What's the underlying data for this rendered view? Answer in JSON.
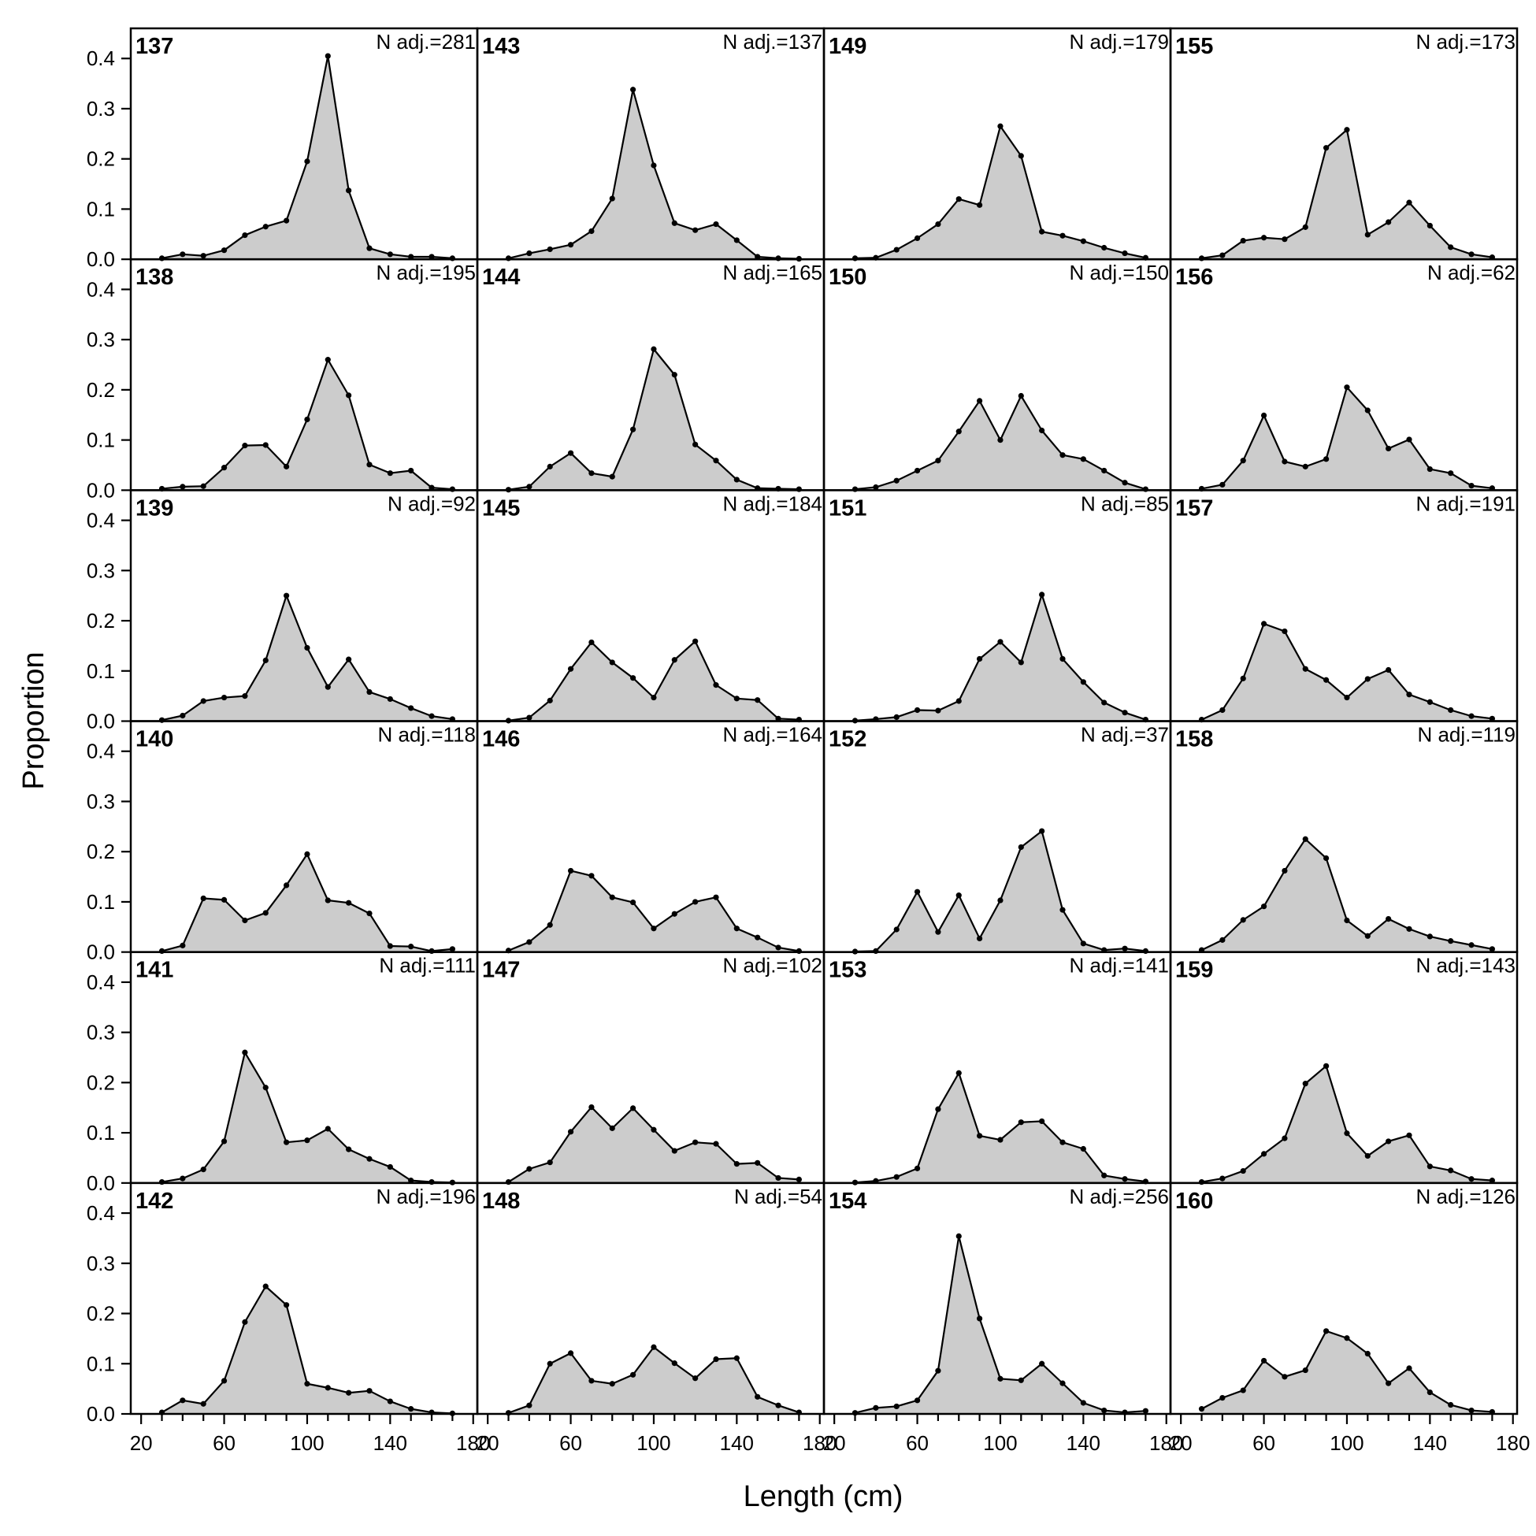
{
  "chart_data": {
    "type": "area",
    "xlabel": "Length (cm)",
    "ylabel": "Proportion",
    "xlim": [
      15,
      182
    ],
    "ylim": [
      0,
      0.46
    ],
    "x_ticks": [
      20,
      60,
      100,
      140,
      180
    ],
    "y_ticks": [
      0.0,
      0.1,
      0.2,
      0.3,
      0.4
    ],
    "y_tick_labels": [
      "0.0",
      "0.1",
      "0.2",
      "0.3",
      "0.4"
    ],
    "x_tick_labels": [
      "20",
      "60",
      "100",
      "140",
      "180"
    ],
    "x": [
      30,
      40,
      50,
      60,
      70,
      80,
      90,
      100,
      110,
      120,
      130,
      140,
      150,
      160,
      170
    ],
    "fill_color": "#cccccc",
    "line_color": "#000000",
    "grid": false,
    "panels": [
      {
        "id": "137",
        "n_adj": "N adj.=281",
        "values": [
          0.002,
          0.01,
          0.007,
          0.018,
          0.048,
          0.065,
          0.077,
          0.195,
          0.405,
          0.137,
          0.022,
          0.01,
          0.005,
          0.005,
          0.002
        ]
      },
      {
        "id": "138",
        "n_adj": "N adj.=195",
        "values": [
          0.003,
          0.007,
          0.008,
          0.045,
          0.089,
          0.09,
          0.047,
          0.141,
          0.26,
          0.189,
          0.051,
          0.034,
          0.039,
          0.005,
          0.002
        ]
      },
      {
        "id": "139",
        "n_adj": "N adj.=92",
        "values": [
          0.002,
          0.011,
          0.04,
          0.047,
          0.05,
          0.121,
          0.25,
          0.146,
          0.068,
          0.123,
          0.058,
          0.044,
          0.026,
          0.01,
          0.004
        ]
      },
      {
        "id": "140",
        "n_adj": "N adj.=118",
        "values": [
          0.002,
          0.013,
          0.107,
          0.104,
          0.063,
          0.078,
          0.133,
          0.195,
          0.103,
          0.098,
          0.077,
          0.012,
          0.011,
          0.002,
          0.006
        ]
      },
      {
        "id": "141",
        "n_adj": "N adj.=111",
        "values": [
          0.002,
          0.009,
          0.027,
          0.083,
          0.26,
          0.19,
          0.081,
          0.085,
          0.108,
          0.067,
          0.048,
          0.032,
          0.005,
          0.002,
          0.001
        ]
      },
      {
        "id": "142",
        "n_adj": "N adj.=196",
        "values": [
          0.003,
          0.027,
          0.02,
          0.066,
          0.183,
          0.254,
          0.217,
          0.06,
          0.052,
          0.042,
          0.046,
          0.025,
          0.01,
          0.003,
          0.001
        ]
      },
      {
        "id": "143",
        "n_adj": "N adj.=137",
        "values": [
          0.002,
          0.012,
          0.02,
          0.029,
          0.056,
          0.121,
          0.338,
          0.187,
          0.072,
          0.058,
          0.07,
          0.038,
          0.005,
          0.002,
          0.001
        ]
      },
      {
        "id": "144",
        "n_adj": "N adj.=165",
        "values": [
          0.001,
          0.007,
          0.047,
          0.074,
          0.034,
          0.027,
          0.121,
          0.281,
          0.23,
          0.091,
          0.059,
          0.021,
          0.004,
          0.003,
          0.002
        ]
      },
      {
        "id": "145",
        "n_adj": "N adj.=184",
        "values": [
          0.001,
          0.007,
          0.041,
          0.104,
          0.157,
          0.117,
          0.086,
          0.047,
          0.122,
          0.159,
          0.072,
          0.045,
          0.042,
          0.005,
          0.003
        ]
      },
      {
        "id": "146",
        "n_adj": "N adj.=164",
        "values": [
          0.003,
          0.02,
          0.054,
          0.162,
          0.152,
          0.109,
          0.099,
          0.047,
          0.076,
          0.1,
          0.109,
          0.047,
          0.029,
          0.009,
          0.002
        ]
      },
      {
        "id": "147",
        "n_adj": "N adj.=102",
        "values": [
          0.002,
          0.028,
          0.041,
          0.102,
          0.151,
          0.109,
          0.149,
          0.106,
          0.064,
          0.081,
          0.078,
          0.038,
          0.04,
          0.01,
          0.007
        ]
      },
      {
        "id": "148",
        "n_adj": "N adj.=54",
        "values": [
          0.002,
          0.017,
          0.1,
          0.121,
          0.066,
          0.06,
          0.078,
          0.133,
          0.101,
          0.071,
          0.109,
          0.111,
          0.034,
          0.017,
          0.003
        ]
      },
      {
        "id": "149",
        "n_adj": "N adj.=179",
        "values": [
          0.002,
          0.003,
          0.019,
          0.042,
          0.07,
          0.12,
          0.108,
          0.265,
          0.206,
          0.055,
          0.047,
          0.036,
          0.023,
          0.012,
          0.003
        ]
      },
      {
        "id": "150",
        "n_adj": "N adj.=150",
        "values": [
          0.002,
          0.006,
          0.019,
          0.039,
          0.059,
          0.117,
          0.178,
          0.1,
          0.188,
          0.119,
          0.07,
          0.062,
          0.039,
          0.015,
          0.002
        ]
      },
      {
        "id": "151",
        "n_adj": "N adj.=85",
        "values": [
          0.001,
          0.004,
          0.008,
          0.022,
          0.021,
          0.04,
          0.124,
          0.158,
          0.117,
          0.252,
          0.124,
          0.078,
          0.037,
          0.017,
          0.003
        ]
      },
      {
        "id": "152",
        "n_adj": "N adj.=37",
        "values": [
          0.001,
          0.002,
          0.045,
          0.12,
          0.04,
          0.113,
          0.027,
          0.103,
          0.209,
          0.241,
          0.084,
          0.017,
          0.004,
          0.007,
          0.002
        ]
      },
      {
        "id": "153",
        "n_adj": "N adj.=141",
        "values": [
          0.001,
          0.004,
          0.012,
          0.029,
          0.147,
          0.219,
          0.094,
          0.086,
          0.121,
          0.123,
          0.081,
          0.068,
          0.015,
          0.008,
          0.003
        ]
      },
      {
        "id": "154",
        "n_adj": "N adj.=256",
        "values": [
          0.002,
          0.012,
          0.015,
          0.027,
          0.086,
          0.354,
          0.19,
          0.07,
          0.067,
          0.1,
          0.061,
          0.022,
          0.007,
          0.003,
          0.006
        ]
      },
      {
        "id": "155",
        "n_adj": "N adj.=173",
        "values": [
          0.002,
          0.008,
          0.037,
          0.043,
          0.04,
          0.064,
          0.222,
          0.258,
          0.049,
          0.074,
          0.113,
          0.067,
          0.024,
          0.01,
          0.004
        ]
      },
      {
        "id": "156",
        "n_adj": "N adj.=62",
        "values": [
          0.003,
          0.011,
          0.059,
          0.149,
          0.057,
          0.047,
          0.062,
          0.205,
          0.159,
          0.083,
          0.101,
          0.042,
          0.034,
          0.009,
          0.004
        ]
      },
      {
        "id": "157",
        "n_adj": "N adj.=191",
        "values": [
          0.003,
          0.022,
          0.085,
          0.194,
          0.179,
          0.104,
          0.082,
          0.047,
          0.084,
          0.102,
          0.053,
          0.038,
          0.022,
          0.01,
          0.005
        ]
      },
      {
        "id": "158",
        "n_adj": "N adj.=119",
        "values": [
          0.004,
          0.024,
          0.064,
          0.091,
          0.162,
          0.225,
          0.187,
          0.063,
          0.032,
          0.066,
          0.046,
          0.031,
          0.022,
          0.014,
          0.006
        ]
      },
      {
        "id": "159",
        "n_adj": "N adj.=143",
        "values": [
          0.002,
          0.009,
          0.024,
          0.058,
          0.089,
          0.198,
          0.233,
          0.099,
          0.054,
          0.083,
          0.095,
          0.033,
          0.025,
          0.008,
          0.005
        ]
      },
      {
        "id": "160",
        "n_adj": "N adj.=126",
        "values": [
          0.01,
          0.032,
          0.047,
          0.106,
          0.074,
          0.087,
          0.165,
          0.151,
          0.12,
          0.061,
          0.091,
          0.043,
          0.018,
          0.007,
          0.004
        ]
      }
    ]
  }
}
